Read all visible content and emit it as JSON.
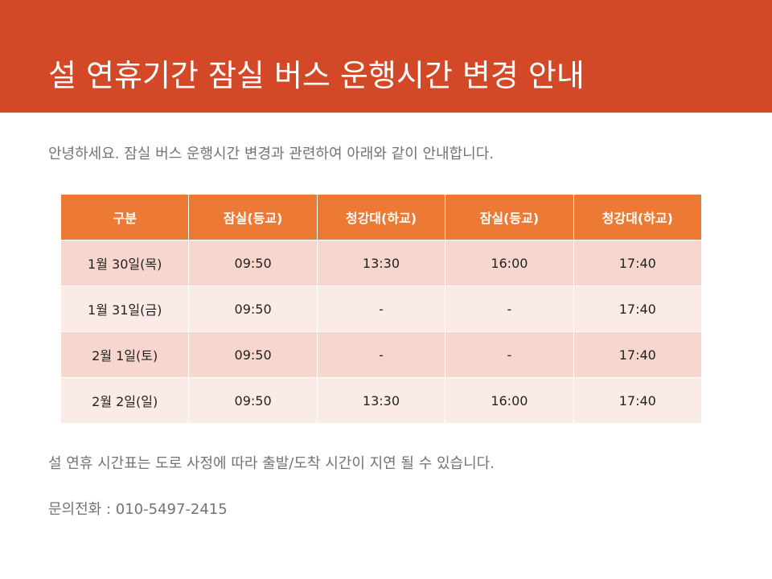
{
  "header": {
    "title": "설 연휴기간 잠실 버스 운행시간 변경 안내",
    "color": "#d34927"
  },
  "intro": "안녕하세요. 잠실 버스 운행시간 변경과 관련하여 아래와 같이 안내합니다.",
  "table": {
    "headers": [
      "구분",
      "잠실(등교)",
      "청강대(하교)",
      "잠실(등교)",
      "청강대(하교)"
    ],
    "rows": [
      [
        "1월 30일(목)",
        "09:50",
        "13:30",
        "16:00",
        "17:40"
      ],
      [
        "1월 31일(금)",
        "09:50",
        "-",
        "-",
        "17:40"
      ],
      [
        "2월 1일(토)",
        "09:50",
        "-",
        "-",
        "17:40"
      ],
      [
        "2월 2일(일)",
        "09:50",
        "13:30",
        "16:00",
        "17:40"
      ]
    ],
    "header_color": "#ec7a35",
    "row_color_odd": "#f7d6cd",
    "row_color_even": "#fbebe7"
  },
  "note": "설 연휴 시간표는 도로 사정에 따라 출발/도착 시간이 지연 될 수 있습니다.",
  "contact": "문의전화 : 010-5497-2415"
}
